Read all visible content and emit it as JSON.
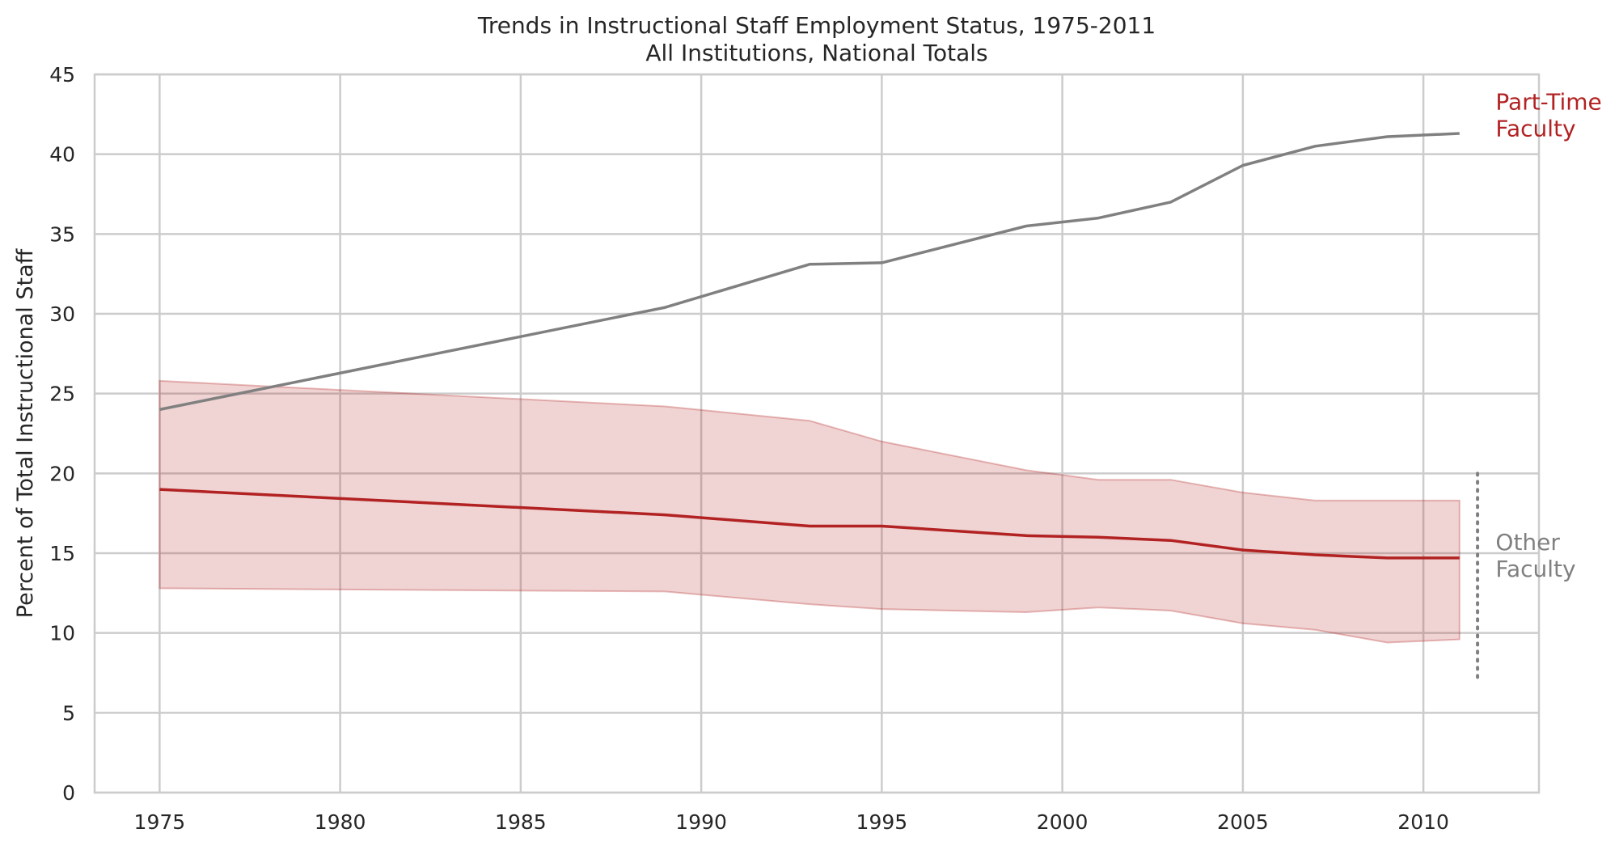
{
  "chart_data": {
    "type": "line",
    "title": [
      "Trends in Instructional Staff Employment Status, 1975-2011",
      "All Institutions, National Totals"
    ],
    "xlabel": "",
    "ylabel": "Percent of Total Instructional Staff",
    "xlim": [
      1973.2,
      2013.2
    ],
    "ylim": [
      0,
      45
    ],
    "xticks": [
      1975,
      1980,
      1985,
      1990,
      1995,
      2000,
      2005,
      2010
    ],
    "yticks": [
      0,
      5,
      10,
      15,
      20,
      25,
      30,
      35,
      40,
      45
    ],
    "grid": true,
    "x": [
      1975,
      1989,
      1993,
      1995,
      1999,
      2001,
      2003,
      2005,
      2007,
      2009,
      2011
    ],
    "series": [
      {
        "name": "Part-Time Faculty",
        "color": "#808080",
        "values": [
          24.0,
          30.4,
          33.1,
          33.2,
          35.5,
          36.0,
          37.0,
          39.3,
          40.5,
          41.1,
          41.3
        ]
      },
      {
        "name": "Other Faculty",
        "color": "#b22222",
        "values": [
          19.0,
          17.4,
          16.7,
          16.7,
          16.1,
          16.0,
          15.8,
          15.2,
          14.9,
          14.7,
          14.7
        ],
        "band_upper": [
          25.8,
          24.2,
          23.3,
          22.0,
          20.2,
          19.6,
          19.6,
          18.8,
          18.3,
          18.3,
          18.3
        ],
        "band_lower": [
          12.8,
          12.6,
          11.8,
          11.5,
          11.3,
          11.6,
          11.4,
          10.6,
          10.2,
          9.4,
          9.6
        ]
      }
    ],
    "range_marker": {
      "x": 2011.5,
      "y_from": 7,
      "y_to": 20
    },
    "annotations": [
      {
        "lines": [
          "Part-Time",
          "Faculty"
        ],
        "color": "#b22222",
        "x": 2012,
        "y": 42.8
      },
      {
        "lines": [
          "Other",
          "Faculty"
        ],
        "color": "#808080",
        "x": 2012,
        "y": 15.2
      }
    ]
  }
}
